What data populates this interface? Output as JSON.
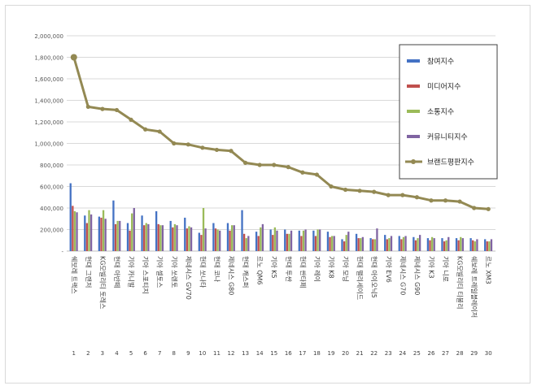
{
  "chart_data": {
    "type": "bar",
    "title": "",
    "xlabel": "",
    "ylabel": "",
    "ylim": [
      0,
      2000000
    ],
    "y_ticks": [
      "-",
      "200,000",
      "400,000",
      "600,000",
      "800,000",
      "1,000,000",
      "1,200,000",
      "1,400,000",
      "1,600,000",
      "1,800,000",
      "2,000,000"
    ],
    "grid": true,
    "legend_position": "right",
    "categories": [
      "쉐보레 트랙스",
      "현대 그랜저",
      "KG모빌리티 토레스",
      "현대 아반떼",
      "기아 카니발",
      "기아 스포티지",
      "기아 셀토스",
      "기아 쏘렌토",
      "제네시스 GV70",
      "현대 쏘나타",
      "현대 코나",
      "제네시스 G80",
      "현대 캐스퍼",
      "르노 QM6",
      "기아 K5",
      "현대 투싼",
      "현대 싼타페",
      "기아 레이",
      "기아 K8",
      "기아 모닝",
      "현대 팰리세이드",
      "현대 아이오닉5",
      "기아 EV6",
      "제네시스 G70",
      "제네시스 G90",
      "기아 K3",
      "기아 니로",
      "KG모빌리티 티볼리",
      "쉐보레 트레일블레이저",
      "르노 XM3"
    ],
    "ranks": [
      "1",
      "2",
      "3",
      "4",
      "5",
      "6",
      "7",
      "8",
      "9",
      "10",
      "11",
      "12",
      "13",
      "14",
      "15",
      "16",
      "17",
      "18",
      "19",
      "20",
      "21",
      "22",
      "23",
      "24",
      "25",
      "26",
      "27",
      "28",
      "29",
      "30"
    ],
    "series": [
      {
        "name": "참여지수",
        "kind": "bar",
        "color": "#4472c4",
        "values": [
          630000,
          330000,
          320000,
          470000,
          260000,
          330000,
          370000,
          280000,
          310000,
          170000,
          260000,
          260000,
          380000,
          180000,
          200000,
          200000,
          190000,
          190000,
          180000,
          110000,
          160000,
          120000,
          150000,
          140000,
          130000,
          120000,
          120000,
          120000,
          120000,
          110000
        ]
      },
      {
        "name": "미디어지수",
        "kind": "bar",
        "color": "#c0504d",
        "values": [
          420000,
          260000,
          310000,
          250000,
          190000,
          240000,
          250000,
          220000,
          210000,
          150000,
          210000,
          190000,
          160000,
          140000,
          150000,
          160000,
          140000,
          140000,
          130000,
          90000,
          120000,
          110000,
          110000,
          110000,
          100000,
          100000,
          90000,
          100000,
          100000,
          90000
        ]
      },
      {
        "name": "소통지수",
        "kind": "bar",
        "color": "#9bbb59",
        "values": [
          370000,
          380000,
          380000,
          280000,
          350000,
          260000,
          240000,
          250000,
          230000,
          400000,
          200000,
          240000,
          120000,
          220000,
          220000,
          160000,
          190000,
          200000,
          140000,
          150000,
          120000,
          110000,
          120000,
          130000,
          120000,
          130000,
          100000,
          130000,
          90000,
          90000
        ]
      },
      {
        "name": "커뮤니티지수",
        "kind": "bar",
        "color": "#8064a2",
        "values": [
          360000,
          340000,
          300000,
          280000,
          400000,
          250000,
          240000,
          240000,
          220000,
          210000,
          190000,
          240000,
          140000,
          250000,
          190000,
          190000,
          200000,
          200000,
          140000,
          180000,
          130000,
          210000,
          140000,
          140000,
          150000,
          120000,
          130000,
          120000,
          110000,
          110000
        ]
      },
      {
        "name": "브랜드평판지수",
        "kind": "line",
        "color": "#938953",
        "values": [
          1800000,
          1340000,
          1320000,
          1310000,
          1220000,
          1130000,
          1110000,
          1000000,
          990000,
          960000,
          940000,
          930000,
          820000,
          800000,
          800000,
          780000,
          730000,
          710000,
          600000,
          570000,
          560000,
          550000,
          520000,
          520000,
          500000,
          470000,
          470000,
          460000,
          400000,
          390000
        ]
      }
    ]
  }
}
